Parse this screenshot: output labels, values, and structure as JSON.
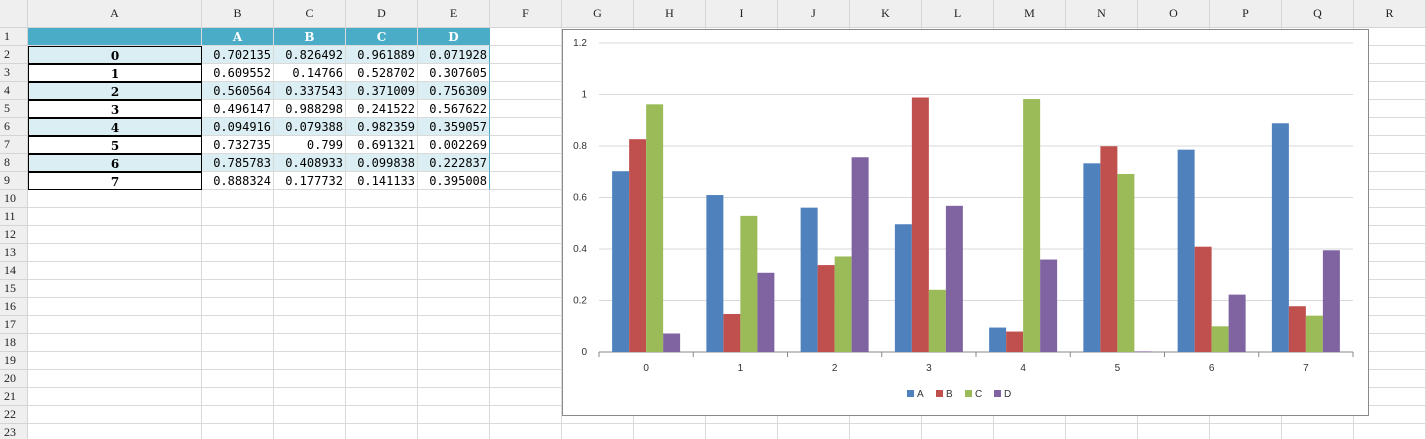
{
  "sheet": {
    "columns": [
      "A",
      "B",
      "C",
      "D",
      "E",
      "F",
      "G",
      "H",
      "I",
      "J",
      "K",
      "L",
      "M",
      "N",
      "O",
      "P",
      "Q",
      "R"
    ],
    "rows": [
      "1",
      "2",
      "3",
      "4",
      "5",
      "6",
      "7",
      "8",
      "9",
      "10",
      "11",
      "12",
      "13",
      "14",
      "15",
      "16",
      "17",
      "18",
      "19",
      "20",
      "21",
      "22",
      "23"
    ]
  },
  "table": {
    "headers": [
      "A",
      "B",
      "C",
      "D"
    ],
    "rows": [
      {
        "index": "0",
        "values": [
          "0.702135",
          "0.826492",
          "0.961889",
          "0.071928"
        ]
      },
      {
        "index": "1",
        "values": [
          "0.609552",
          "0.14766",
          "0.528702",
          "0.307605"
        ]
      },
      {
        "index": "2",
        "values": [
          "0.560564",
          "0.337543",
          "0.371009",
          "0.756309"
        ]
      },
      {
        "index": "3",
        "values": [
          "0.496147",
          "0.988298",
          "0.241522",
          "0.567622"
        ]
      },
      {
        "index": "4",
        "values": [
          "0.094916",
          "0.079388",
          "0.982359",
          "0.359057"
        ]
      },
      {
        "index": "5",
        "values": [
          "0.732735",
          "0.799",
          "0.691321",
          "0.002269"
        ]
      },
      {
        "index": "6",
        "values": [
          "0.785783",
          "0.408933",
          "0.099838",
          "0.222837"
        ]
      },
      {
        "index": "7",
        "values": [
          "0.888324",
          "0.177732",
          "0.141133",
          "0.395008"
        ]
      }
    ]
  },
  "chart_data": {
    "type": "bar",
    "categories": [
      "0",
      "1",
      "2",
      "3",
      "4",
      "5",
      "6",
      "7"
    ],
    "series": [
      {
        "name": "A",
        "color": "#4f81bd",
        "values": [
          0.702135,
          0.609552,
          0.560564,
          0.496147,
          0.094916,
          0.732735,
          0.785783,
          0.888324
        ]
      },
      {
        "name": "B",
        "color": "#c0504d",
        "values": [
          0.826492,
          0.14766,
          0.337543,
          0.988298,
          0.079388,
          0.799,
          0.408933,
          0.177732
        ]
      },
      {
        "name": "C",
        "color": "#9bbb59",
        "values": [
          0.961889,
          0.528702,
          0.371009,
          0.241522,
          0.982359,
          0.691321,
          0.099838,
          0.141133
        ]
      },
      {
        "name": "D",
        "color": "#8064a2",
        "values": [
          0.071928,
          0.307605,
          0.756309,
          0.567622,
          0.359057,
          0.002269,
          0.222837,
          0.395008
        ]
      }
    ],
    "ylim": [
      0,
      1.2
    ],
    "yticks": [
      "0",
      "0.2",
      "0.4",
      "0.6",
      "0.8",
      "1",
      "1.2"
    ],
    "grid": true,
    "legend": "bottom"
  }
}
